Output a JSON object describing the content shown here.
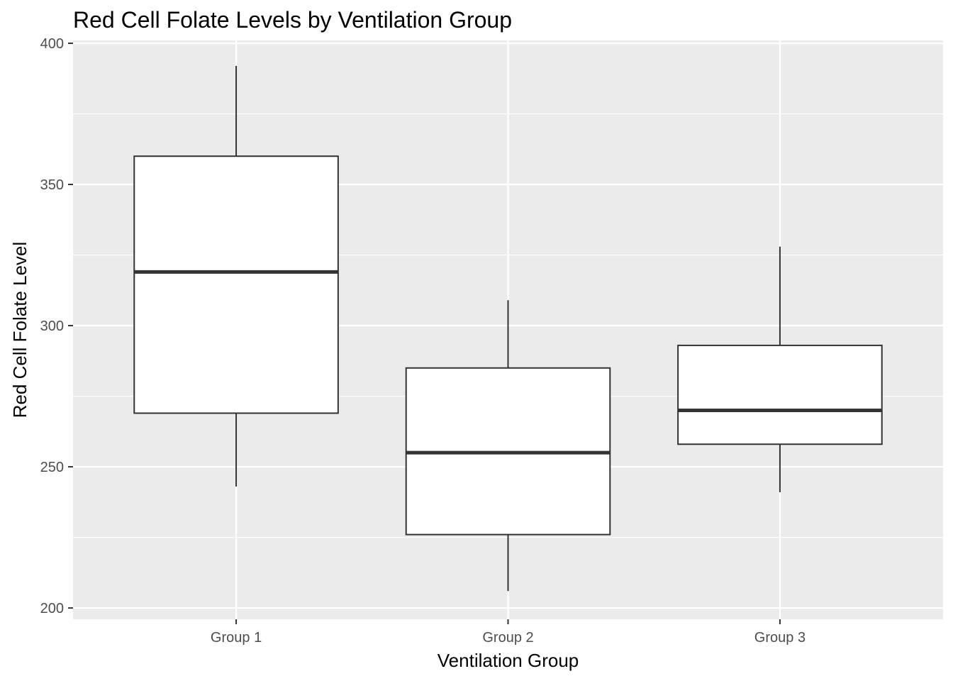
{
  "chart_data": {
    "type": "box",
    "title": "Red Cell Folate Levels by Ventilation Group",
    "xlabel": "Ventilation Group",
    "ylabel": "Red Cell Folate Level",
    "categories": [
      "Group 1",
      "Group 2",
      "Group 3"
    ],
    "boxes": [
      {
        "category": "Group 1",
        "whisker_low": 243,
        "q1": 269,
        "median": 319,
        "q3": 360,
        "whisker_high": 392
      },
      {
        "category": "Group 2",
        "whisker_low": 206,
        "q1": 226,
        "median": 255,
        "q3": 285,
        "whisker_high": 309
      },
      {
        "category": "Group 3",
        "whisker_low": 241,
        "q1": 258,
        "median": 270,
        "q3": 293,
        "whisker_high": 328
      }
    ],
    "yticks": [
      200,
      250,
      300,
      350,
      400
    ],
    "ytick_labels": [
      "200",
      "250",
      "300",
      "350",
      "400"
    ],
    "ylim": [
      196,
      401
    ],
    "grid": true,
    "legend": "none",
    "colors": {
      "panel": "#EBEBEB",
      "grid": "#FFFFFF",
      "box_fill": "#FFFFFF",
      "box_line": "#333333",
      "tick_text": "#4D4D4D"
    }
  }
}
